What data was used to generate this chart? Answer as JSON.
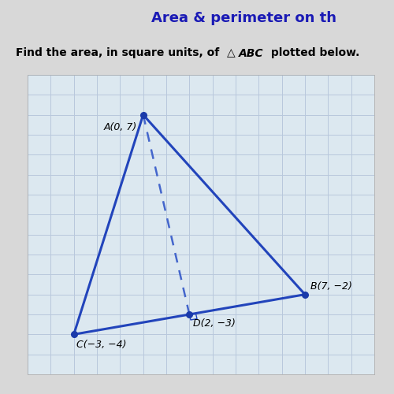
{
  "title": "Area & perimeter on th",
  "title_color": "#1a1ab5",
  "title_bg": "#b8c4d8",
  "subtitle_plain": "Find the area, in square units, of ",
  "subtitle_italic": "△ABC",
  "subtitle_end": " plotted below.",
  "points": {
    "A": [
      0,
      7
    ],
    "B": [
      7,
      -2
    ],
    "C": [
      -3,
      -4
    ],
    "D": [
      2,
      -3
    ]
  },
  "triangle_color": "#2244bb",
  "dashed_color": "#4466cc",
  "dot_color": "#1a3aaa",
  "grid_color": "#b8c8dc",
  "background_color": "#d8d8d8",
  "plot_bg": "#dce8f0",
  "xlim": [
    -5,
    10
  ],
  "ylim": [
    -6,
    9
  ],
  "label_fontsize": 9,
  "subtitle_fontsize": 10
}
